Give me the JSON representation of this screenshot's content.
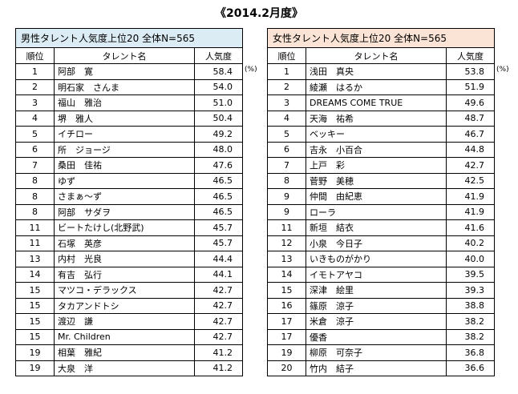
{
  "title": "《2014.2月度》",
  "unit": "(%)",
  "male": {
    "caption": "男性タレント人気度上位20  全体N=565",
    "headers": {
      "rank": "順位",
      "name": "タレント名",
      "value": "人気度"
    },
    "rows": [
      {
        "rank": "1",
        "name": "阿部　寛",
        "value": "58.4"
      },
      {
        "rank": "2",
        "name": "明石家　さんま",
        "value": "54.0"
      },
      {
        "rank": "3",
        "name": "福山　雅治",
        "value": "51.0"
      },
      {
        "rank": "4",
        "name": "堺　雅人",
        "value": "50.4"
      },
      {
        "rank": "5",
        "name": "イチロー",
        "value": "49.2"
      },
      {
        "rank": "6",
        "name": "所　ジョージ",
        "value": "48.0"
      },
      {
        "rank": "7",
        "name": "桑田　佳祐",
        "value": "47.6"
      },
      {
        "rank": "8",
        "name": "ゆず",
        "value": "46.5"
      },
      {
        "rank": "8",
        "name": "さまぁ～ず",
        "value": "46.5"
      },
      {
        "rank": "8",
        "name": "阿部　サダヲ",
        "value": "46.5"
      },
      {
        "rank": "11",
        "name": "ビートたけし(北野武)",
        "value": "45.7"
      },
      {
        "rank": "11",
        "name": "石塚　英彦",
        "value": "45.7"
      },
      {
        "rank": "13",
        "name": "内村　光良",
        "value": "44.4"
      },
      {
        "rank": "14",
        "name": "有吉　弘行",
        "value": "44.1"
      },
      {
        "rank": "15",
        "name": "マツコ・デラックス",
        "value": "42.7"
      },
      {
        "rank": "15",
        "name": "タカアンドトシ",
        "value": "42.7"
      },
      {
        "rank": "15",
        "name": "渡辺　謙",
        "value": "42.7"
      },
      {
        "rank": "15",
        "name": "Mr. Children",
        "value": "42.7"
      },
      {
        "rank": "19",
        "name": "相葉　雅紀",
        "value": "41.2"
      },
      {
        "rank": "19",
        "name": "大泉　洋",
        "value": "41.2"
      }
    ]
  },
  "female": {
    "caption": "女性タレント人気度上位20  全体N=565",
    "headers": {
      "rank": "順位",
      "name": "タレント名",
      "value": "人気度"
    },
    "rows": [
      {
        "rank": "1",
        "name": "浅田　真央",
        "value": "53.8"
      },
      {
        "rank": "2",
        "name": "綾瀬　はるか",
        "value": "51.9"
      },
      {
        "rank": "3",
        "name": "DREAMS COME TRUE",
        "value": "49.6"
      },
      {
        "rank": "4",
        "name": "天海　祐希",
        "value": "48.7"
      },
      {
        "rank": "5",
        "name": "ベッキー",
        "value": "46.7"
      },
      {
        "rank": "6",
        "name": "吉永　小百合",
        "value": "44.8"
      },
      {
        "rank": "7",
        "name": "上戸　彩",
        "value": "42.7"
      },
      {
        "rank": "8",
        "name": "菅野　美穂",
        "value": "42.5"
      },
      {
        "rank": "9",
        "name": "仲間　由紀恵",
        "value": "41.9"
      },
      {
        "rank": "9",
        "name": "ローラ",
        "value": "41.9"
      },
      {
        "rank": "11",
        "name": "新垣　結衣",
        "value": "41.6"
      },
      {
        "rank": "12",
        "name": "小泉　今日子",
        "value": "40.2"
      },
      {
        "rank": "13",
        "name": "いきものがかり",
        "value": "40.0"
      },
      {
        "rank": "14",
        "name": "イモトアヤコ",
        "value": "39.5"
      },
      {
        "rank": "15",
        "name": "深津　絵里",
        "value": "39.3"
      },
      {
        "rank": "16",
        "name": "篠原　涼子",
        "value": "38.8"
      },
      {
        "rank": "17",
        "name": "米倉　涼子",
        "value": "38.2"
      },
      {
        "rank": "17",
        "name": "優香",
        "value": "38.2"
      },
      {
        "rank": "19",
        "name": "柳原　可奈子",
        "value": "36.8"
      },
      {
        "rank": "20",
        "name": "竹内　結子",
        "value": "36.6"
      }
    ]
  }
}
